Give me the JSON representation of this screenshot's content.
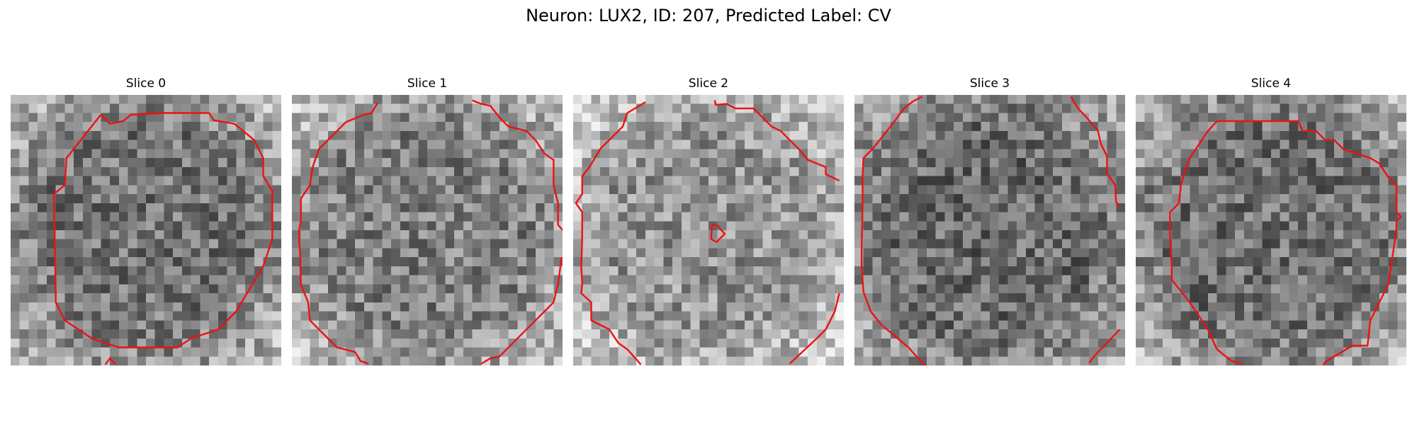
{
  "figure": {
    "title": "Neuron: LUX2, ID: 207, Predicted Label: CV"
  },
  "panels": [
    {
      "title": "Slice 0",
      "contour_color": "#ee1111",
      "seed": 11,
      "center_brightness": 0.46
    },
    {
      "title": "Slice 1",
      "contour_color": "#ee1111",
      "seed": 23,
      "center_brightness": 0.5
    },
    {
      "title": "Slice 2",
      "contour_color": "#ee1111",
      "seed": 37,
      "center_brightness": 0.58
    },
    {
      "title": "Slice 3",
      "contour_color": "#ee1111",
      "seed": 41,
      "center_brightness": 0.42
    },
    {
      "title": "Slice 4",
      "contour_color": "#ee1111",
      "seed": 59,
      "center_brightness": 0.44
    }
  ],
  "colormap": "gray"
}
